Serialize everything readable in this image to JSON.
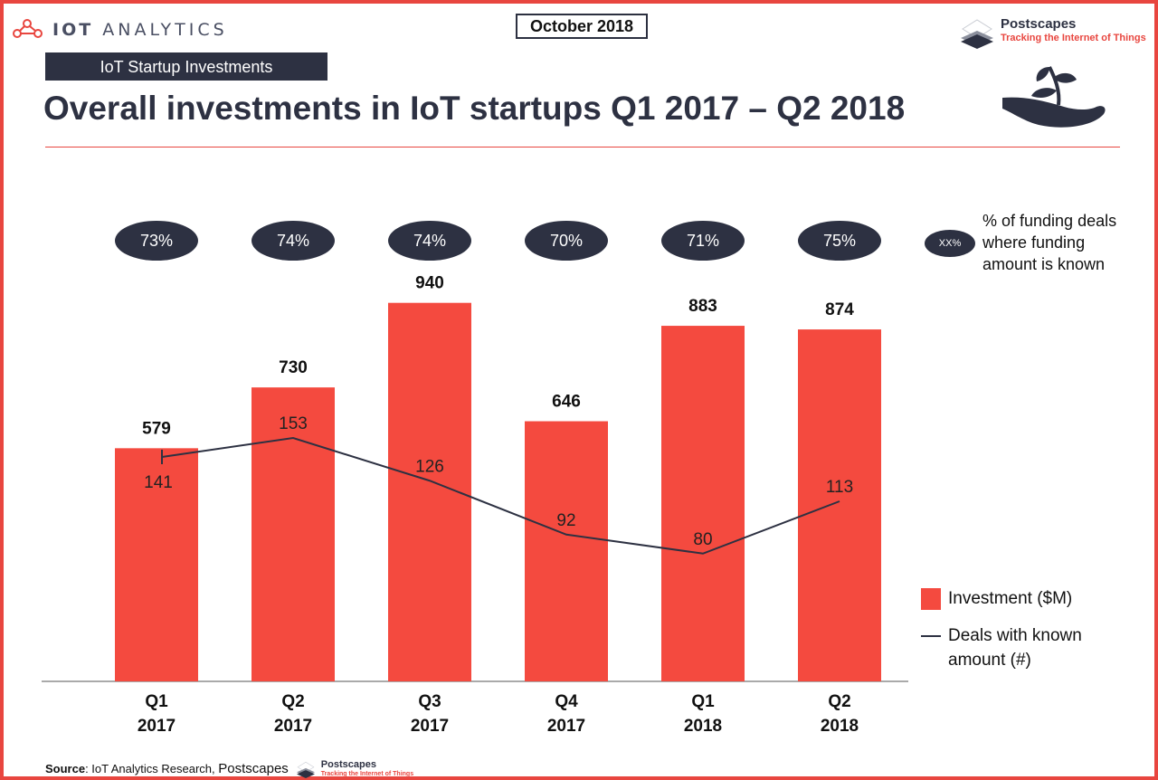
{
  "header": {
    "brand_icot": "IOT",
    "brand_analytics": "ANALYTICS",
    "date_badge": "October 2018",
    "section_tag": "IoT Startup Investments",
    "title": "Overall investments in IoT startups Q1 2017 – Q2 2018",
    "partner_name": "Postscapes",
    "partner_tagline": "Tracking the Internet of Things"
  },
  "funding_known_key": {
    "badge": "XX%",
    "text": "% of funding deals where funding amount is known"
  },
  "legend": {
    "bar_label": "Investment ($M)",
    "line_label": "Deals with known amount (#)"
  },
  "source": {
    "label": "Source",
    "text": ": IoT Analytics Research, ",
    "partner": "Postscapes",
    "partner_tagline": "Tracking the Internet of Things"
  },
  "colors": {
    "accent": "#e8463f",
    "bar": "#f44a3f",
    "navy": "#2d3142"
  },
  "icons": [
    "iot-analytics-logo-icon",
    "postscapes-logo-icon",
    "plant-hand-icon"
  ],
  "chart_data": {
    "type": "bar",
    "categories": [
      [
        "Q1",
        "2017"
      ],
      [
        "Q2",
        "2017"
      ],
      [
        "Q3",
        "2017"
      ],
      [
        "Q4",
        "2017"
      ],
      [
        "Q1",
        "2018"
      ],
      [
        "Q2",
        "2018"
      ]
    ],
    "series": [
      {
        "name": "Investment ($M)",
        "type": "bar",
        "values": [
          579,
          730,
          940,
          646,
          883,
          874
        ]
      },
      {
        "name": "Deals with known amount (#)",
        "type": "line",
        "values": [
          141,
          153,
          126,
          92,
          80,
          113
        ]
      }
    ],
    "funding_known_pct": [
      "73%",
      "74%",
      "74%",
      "70%",
      "71%",
      "75%"
    ],
    "ylim_bar": [
      0,
      1100
    ],
    "ylim_line": [
      0,
      300
    ],
    "grid": false,
    "legend_position": "right"
  }
}
